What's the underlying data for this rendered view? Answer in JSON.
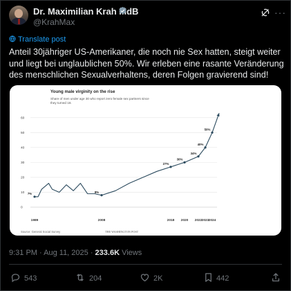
{
  "author": {
    "name": "Dr. Maximilian Krah MdB",
    "handle": "@KrahMax"
  },
  "translate_label": "Translate post",
  "tweet_text": "Anteil 30jähriger US-Amerikaner, die noch nie Sex hatten, steigt weiter und liegt bei unglaublichen 50%. Wir erleben eine rasante Veränderung des menschlichen Sexualverhaltens, deren Folgen gravierend sind!",
  "meta": {
    "time": "9:31 PM · Aug 11, 2025 · ",
    "views": "233.6K",
    "views_label": " Views"
  },
  "actions": {
    "replies": "543",
    "reposts": "204",
    "likes": "2K",
    "bookmarks": "442"
  },
  "colors": {
    "accent": "#1d9bf0",
    "line": "#2b4a5e",
    "background": "#000000"
  },
  "chart_data": {
    "type": "line",
    "title": "Young male virginity on the rise",
    "subtitle_lines": [
      "Share of men under age 30 who report zero female sex partners since",
      "they turned 18."
    ],
    "source": "Source: General Social Survey",
    "credit": "THE WASHINGTON POST",
    "y_ticks": [
      "60",
      "50",
      "40",
      "30",
      "20",
      "10",
      "0"
    ],
    "ylim": [
      0,
      65
    ],
    "x_tick_labels": [
      {
        "x": 1989,
        "label": "1989"
      },
      {
        "x": 2008,
        "label": "2008"
      },
      {
        "x": 2018,
        "label": "2018"
      },
      {
        "x": 2020,
        "label": "2020"
      },
      {
        "x": 2022,
        "label": "2022"
      },
      {
        "x": 2023,
        "label": "2023"
      },
      {
        "x": 2024,
        "label": "2024"
      }
    ],
    "series": [
      {
        "x": [
          1989,
          1990,
          1991,
          1993,
          1994,
          1996,
          1998,
          2000,
          2002,
          2004,
          2006,
          2008,
          2010,
          2012,
          2014,
          2016,
          2018,
          2020,
          2022,
          2023,
          2024
        ],
        "y": [
          7,
          7,
          12,
          16,
          12,
          10,
          15,
          11,
          16,
          9,
          9,
          8,
          11,
          16,
          20,
          24,
          27,
          30,
          34,
          40,
          50
        ]
      }
    ],
    "point_labels": [
      {
        "x": 1989,
        "y": 7,
        "label": "7%"
      },
      {
        "x": 2008,
        "y": 8,
        "label": "8%"
      },
      {
        "x": 2018,
        "y": 27,
        "label": "27%"
      },
      {
        "x": 2020,
        "y": 30,
        "label": "30%"
      },
      {
        "x": 2022,
        "y": 34,
        "label": "34%"
      },
      {
        "x": 2023,
        "y": 40,
        "label": "40%"
      },
      {
        "x": 2024,
        "y": 50,
        "label": "50%"
      }
    ],
    "arrow_end": {
      "x": 2025,
      "y": 63
    }
  }
}
